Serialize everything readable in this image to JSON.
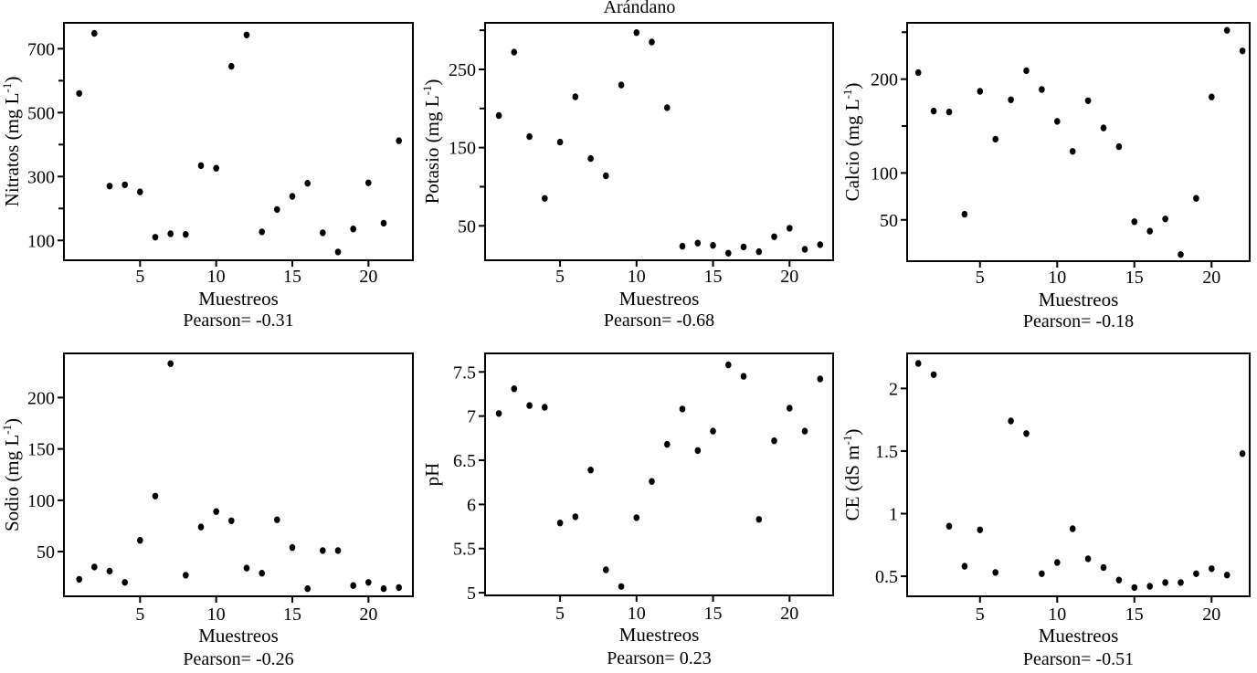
{
  "title": "Arándano",
  "colors": {
    "points": "#000000",
    "axis": "#000000",
    "background": "#ffffff"
  },
  "chart_data": [
    {
      "type": "scatter",
      "name": "nitratos",
      "ylabel": "Nitratos (mg L^-1^)",
      "xlabel": "Muestreos",
      "pearson": "Pearson= -0.31",
      "x": [
        1,
        2,
        3,
        4,
        5,
        6,
        7,
        8,
        9,
        10,
        11,
        12,
        13,
        14,
        15,
        16,
        17,
        18,
        19,
        20,
        21,
        22
      ],
      "y": [
        560,
        748,
        270,
        274,
        252,
        110,
        121,
        119,
        334,
        326,
        645,
        743,
        127,
        197,
        238,
        279,
        124,
        64,
        136,
        280,
        154,
        412
      ],
      "xlim": [
        0,
        22.92
      ],
      "ylim": [
        38,
        781
      ],
      "xticks": [
        5,
        10,
        15,
        20
      ],
      "yticks": [
        100,
        300,
        500,
        700
      ],
      "yticks_minor": [
        200,
        400,
        600
      ]
    },
    {
      "type": "scatter",
      "name": "potasio",
      "ylabel": "Potasio (mg L^-1^)",
      "xlabel": "Muestreos",
      "pearson": "Pearson= -0.68",
      "x": [
        1,
        2,
        3,
        4,
        5,
        6,
        7,
        8,
        9,
        10,
        11,
        12,
        13,
        14,
        15,
        16,
        17,
        18,
        19,
        20,
        21,
        22
      ],
      "y": [
        191,
        272,
        164,
        85,
        157,
        215,
        136,
        114,
        230,
        297,
        285,
        201,
        24,
        28,
        25,
        15,
        23,
        17,
        36,
        47,
        20,
        26
      ],
      "xlim": [
        0.1,
        22.85
      ],
      "ylim": [
        6,
        309.5
      ],
      "xticks": [
        5,
        10,
        15,
        20
      ],
      "yticks": [
        50,
        150,
        250
      ],
      "yticks_minor": [
        100,
        200,
        300
      ]
    },
    {
      "type": "scatter",
      "name": "calcio",
      "ylabel": "Calcio (mg L^-1^)",
      "xlabel": "Muestreos",
      "pearson": "Pearson= -0.18",
      "x": [
        1,
        2,
        3,
        4,
        5,
        6,
        7,
        8,
        9,
        10,
        11,
        12,
        13,
        14,
        15,
        16,
        17,
        18,
        19,
        20,
        21,
        22
      ],
      "y": [
        207,
        166,
        165,
        56,
        187,
        136,
        178,
        209,
        189,
        155,
        123,
        177,
        148,
        128,
        48,
        38,
        51,
        13,
        73,
        181,
        252,
        230
      ],
      "xlim": [
        0.28,
        22.47
      ],
      "ylim": [
        6,
        260
      ],
      "xticks": [
        5,
        10,
        15,
        20
      ],
      "yticks": [
        50,
        100,
        200
      ],
      "yticks_minor": [
        150,
        250
      ]
    },
    {
      "type": "scatter",
      "name": "sodio",
      "ylabel": "Sodio (mg L^-1^)",
      "xlabel": "Muestreos",
      "pearson": "Pearson= -0.26",
      "x": [
        1,
        2,
        3,
        4,
        5,
        6,
        7,
        8,
        9,
        10,
        11,
        12,
        13,
        14,
        15,
        16,
        17,
        18,
        19,
        20,
        21,
        22
      ],
      "y": [
        23,
        35,
        31,
        20,
        61,
        104,
        233,
        27,
        74,
        89,
        80,
        34,
        29,
        81,
        54,
        14,
        51,
        51,
        17,
        20,
        14,
        15
      ],
      "xlim": [
        0,
        22.92
      ],
      "ylim": [
        6.5,
        243
      ],
      "xticks": [
        5,
        10,
        15,
        20
      ],
      "yticks": [
        50,
        100,
        150,
        200
      ],
      "yticks_minor": []
    },
    {
      "type": "scatter",
      "name": "ph",
      "ylabel": "pH",
      "xlabel": "Muestreos",
      "pearson": "Pearson= 0.23",
      "x": [
        1,
        2,
        3,
        4,
        5,
        6,
        7,
        8,
        9,
        10,
        11,
        12,
        13,
        14,
        15,
        16,
        17,
        18,
        19,
        20,
        21,
        22
      ],
      "y": [
        7.03,
        7.31,
        7.12,
        7.1,
        5.79,
        5.86,
        6.39,
        5.26,
        5.07,
        5.85,
        6.26,
        6.68,
        7.08,
        6.61,
        6.83,
        7.58,
        7.45,
        5.83,
        6.72,
        7.09,
        6.83,
        7.42
      ],
      "xlim": [
        0.1,
        22.85
      ],
      "ylim": [
        4.97,
        7.71
      ],
      "xticks": [
        5,
        10,
        15,
        20
      ],
      "yticks": [
        5,
        5.5,
        6,
        6.5,
        7,
        7.5
      ],
      "yticks_minor": []
    },
    {
      "type": "scatter",
      "name": "ce",
      "ylabel": "CE (dS m^-1^)",
      "xlabel": "Muestreos",
      "pearson": "Pearson= -0.51",
      "x": [
        1,
        2,
        3,
        4,
        5,
        6,
        7,
        8,
        9,
        10,
        11,
        12,
        13,
        14,
        15,
        16,
        17,
        18,
        19,
        20,
        21,
        22
      ],
      "y": [
        2.2,
        2.11,
        0.9,
        0.58,
        0.87,
        0.53,
        1.74,
        1.64,
        0.52,
        0.61,
        0.88,
        0.64,
        0.57,
        0.47,
        0.41,
        0.42,
        0.45,
        0.45,
        0.52,
        0.56,
        0.51,
        1.48
      ],
      "xlim": [
        0.28,
        22.47
      ],
      "ylim": [
        0.34,
        2.28
      ],
      "xticks": [
        5,
        10,
        15,
        20
      ],
      "yticks": [
        0.5,
        1,
        1.5,
        2
      ],
      "yticks_minor": []
    }
  ]
}
